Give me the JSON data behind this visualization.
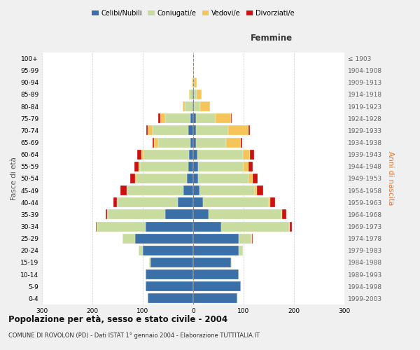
{
  "age_groups": [
    "0-4",
    "5-9",
    "10-14",
    "15-19",
    "20-24",
    "25-29",
    "30-34",
    "35-39",
    "40-44",
    "45-49",
    "50-54",
    "55-59",
    "60-64",
    "65-69",
    "70-74",
    "75-79",
    "80-84",
    "85-89",
    "90-94",
    "95-99",
    "100+"
  ],
  "birth_years": [
    "1999-2003",
    "1994-1998",
    "1989-1993",
    "1984-1988",
    "1979-1983",
    "1974-1978",
    "1969-1973",
    "1964-1968",
    "1959-1963",
    "1954-1958",
    "1949-1953",
    "1944-1948",
    "1939-1943",
    "1934-1938",
    "1929-1933",
    "1924-1928",
    "1919-1923",
    "1914-1918",
    "1909-1913",
    "1904-1908",
    "≤ 1903"
  ],
  "male": {
    "celibi": [
      90,
      95,
      95,
      85,
      100,
      115,
      95,
      55,
      30,
      20,
      12,
      10,
      8,
      5,
      10,
      5,
      1,
      2,
      0,
      0,
      0
    ],
    "coniugati": [
      0,
      0,
      0,
      2,
      8,
      25,
      95,
      115,
      120,
      110,
      100,
      95,
      90,
      65,
      70,
      50,
      15,
      5,
      2,
      0,
      0
    ],
    "vedovi": [
      0,
      0,
      0,
      0,
      0,
      0,
      1,
      1,
      1,
      2,
      3,
      4,
      5,
      8,
      10,
      10,
      5,
      2,
      1,
      0,
      0
    ],
    "divorziati": [
      0,
      0,
      0,
      0,
      0,
      0,
      2,
      2,
      8,
      12,
      10,
      8,
      8,
      2,
      3,
      5,
      0,
      0,
      0,
      0,
      0
    ]
  },
  "female": {
    "nubili": [
      88,
      95,
      90,
      75,
      90,
      90,
      55,
      30,
      20,
      12,
      10,
      10,
      8,
      5,
      5,
      5,
      2,
      2,
      0,
      0,
      0
    ],
    "coniugate": [
      0,
      0,
      0,
      2,
      8,
      25,
      135,
      145,
      130,
      110,
      100,
      90,
      90,
      60,
      65,
      40,
      12,
      5,
      2,
      0,
      0
    ],
    "vedove": [
      0,
      0,
      0,
      0,
      0,
      1,
      1,
      2,
      3,
      5,
      8,
      10,
      15,
      30,
      40,
      30,
      20,
      10,
      5,
      2,
      0
    ],
    "divorziate": [
      0,
      0,
      0,
      0,
      0,
      2,
      5,
      8,
      10,
      12,
      10,
      8,
      8,
      2,
      3,
      2,
      0,
      0,
      0,
      0,
      0
    ]
  },
  "colors": {
    "celibi": "#3a6fa8",
    "coniugati": "#c8dca0",
    "vedovi": "#f5c55a",
    "divorziati": "#cc1111"
  },
  "legend_labels": [
    "Celibi/Nubili",
    "Coniugati/e",
    "Vedovi/e",
    "Divorziati/e"
  ],
  "title": "Popolazione per età, sesso e stato civile - 2004",
  "subtitle": "COMUNE DI ROVOLON (PD) - Dati ISTAT 1° gennaio 2004 - Elaborazione TUTTITALIA.IT",
  "xlabel_right": "Femmine",
  "ylabel_left": "Fasce di età",
  "ylabel_right": "Anni di nascita",
  "xlim": 300,
  "bg_color": "#f0f0f0",
  "plot_bg_color": "#ffffff"
}
